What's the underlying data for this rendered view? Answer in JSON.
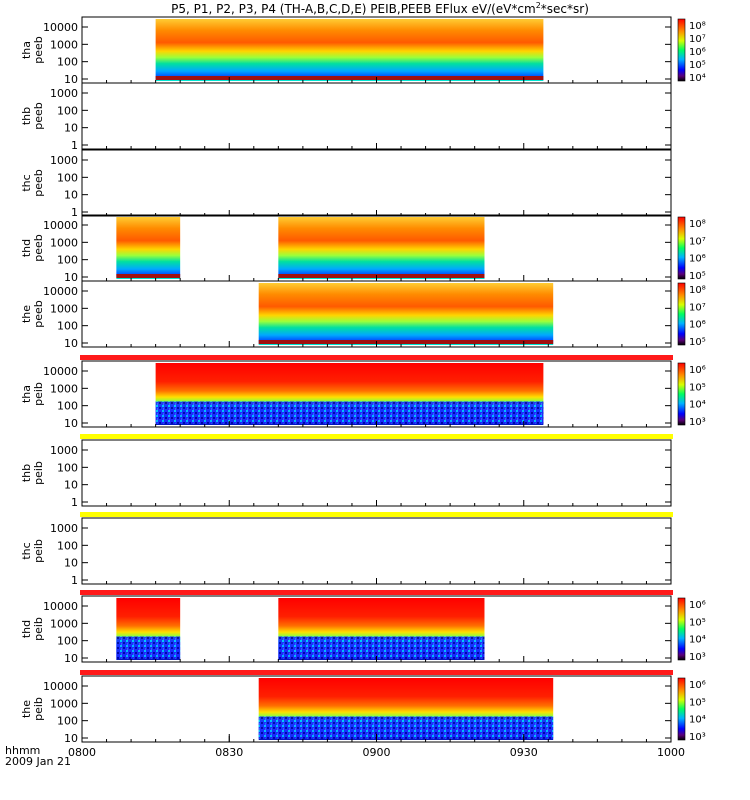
{
  "title": "P5, P1, P2, P3, P4 (TH-A,B,C,D,E) PEIB,PEEB EFlux eV/(eV*cm",
  "title_sup": "2",
  "title_end": "*sec*sr)",
  "footer": {
    "label": "hhmm",
    "date": "2009 Jan 21"
  },
  "colors": {
    "red_bar": "#ff1a1a",
    "yellow_bar": "#ffff00",
    "low_band": "#a01010"
  },
  "chart_data": {
    "type": "heatmap",
    "x_tick_labels": [
      "0800",
      "0830",
      "0900",
      "0930",
      "1000"
    ],
    "x_range_minutes": [
      0,
      120
    ],
    "panels": [
      {
        "id": "tha-peeb",
        "ylabel": [
          "tha",
          "peeb"
        ],
        "yticks": [
          "10000",
          "1000",
          "100",
          "10"
        ],
        "data_range": [
          15,
          94
        ],
        "has_data": true,
        "kind": "electron",
        "bar_above": "none",
        "colorbar": [
          "10⁸",
          "10⁷",
          "10⁶",
          "10⁵",
          "10⁴"
        ]
      },
      {
        "id": "thb-peeb",
        "ylabel": [
          "thb",
          "peeb"
        ],
        "yticks": [
          "1000",
          "100",
          "10",
          "1"
        ],
        "data_range": null,
        "has_data": false,
        "kind": "electron",
        "bar_above": "none",
        "colorbar": []
      },
      {
        "id": "thc-peeb",
        "ylabel": [
          "thc",
          "peeb"
        ],
        "yticks": [
          "1000",
          "100",
          "10",
          "1"
        ],
        "data_range": null,
        "has_data": false,
        "kind": "electron",
        "bar_above": "none",
        "colorbar": []
      },
      {
        "id": "thd-peeb",
        "ylabel": [
          "thd",
          "peeb"
        ],
        "yticks": [
          "10000",
          "1000",
          "100",
          "10"
        ],
        "data_range": [
          [
            7,
            20
          ],
          [
            40,
            82
          ]
        ],
        "has_data": true,
        "kind": "electron",
        "bar_above": "none",
        "colorbar": [
          "10⁸",
          "10⁷",
          "10⁶",
          "10⁵"
        ]
      },
      {
        "id": "the-peeb",
        "ylabel": [
          "the",
          "peeb"
        ],
        "yticks": [
          "10000",
          "1000",
          "100",
          "10"
        ],
        "data_range": [
          36,
          96
        ],
        "has_data": true,
        "kind": "electron",
        "bar_above": "none",
        "colorbar": [
          "10⁸",
          "10⁷",
          "10⁶",
          "10⁵"
        ]
      },
      {
        "id": "tha-peib",
        "ylabel": [
          "tha",
          "peib"
        ],
        "yticks": [
          "10000",
          "1000",
          "100",
          "10"
        ],
        "data_range": [
          15,
          94
        ],
        "has_data": true,
        "kind": "ion",
        "bar_above": "red",
        "colorbar": [
          "10⁶",
          "10⁵",
          "10⁴",
          "10³"
        ]
      },
      {
        "id": "thb-peib",
        "ylabel": [
          "thb",
          "peib"
        ],
        "yticks": [
          "1000",
          "100",
          "10",
          "1"
        ],
        "data_range": null,
        "has_data": false,
        "kind": "ion",
        "bar_above": "yellow",
        "colorbar": []
      },
      {
        "id": "thc-peib",
        "ylabel": [
          "thc",
          "peib"
        ],
        "yticks": [
          "1000",
          "100",
          "10",
          "1"
        ],
        "data_range": null,
        "has_data": false,
        "kind": "ion",
        "bar_above": "yellow",
        "colorbar": []
      },
      {
        "id": "thd-peib",
        "ylabel": [
          "thd",
          "peib"
        ],
        "yticks": [
          "10000",
          "1000",
          "100",
          "10"
        ],
        "data_range": [
          [
            7,
            20
          ],
          [
            40,
            82
          ]
        ],
        "has_data": true,
        "kind": "ion",
        "bar_above": "red",
        "colorbar": [
          "10⁶",
          "10⁵",
          "10⁴",
          "10³"
        ]
      },
      {
        "id": "the-peib",
        "ylabel": [
          "the",
          "peib"
        ],
        "yticks": [
          "10000",
          "1000",
          "100",
          "10"
        ],
        "data_range": [
          36,
          96
        ],
        "has_data": true,
        "kind": "ion",
        "bar_above": "red",
        "colorbar": [
          "10⁶",
          "10⁵",
          "10⁴",
          "10³"
        ]
      }
    ]
  }
}
